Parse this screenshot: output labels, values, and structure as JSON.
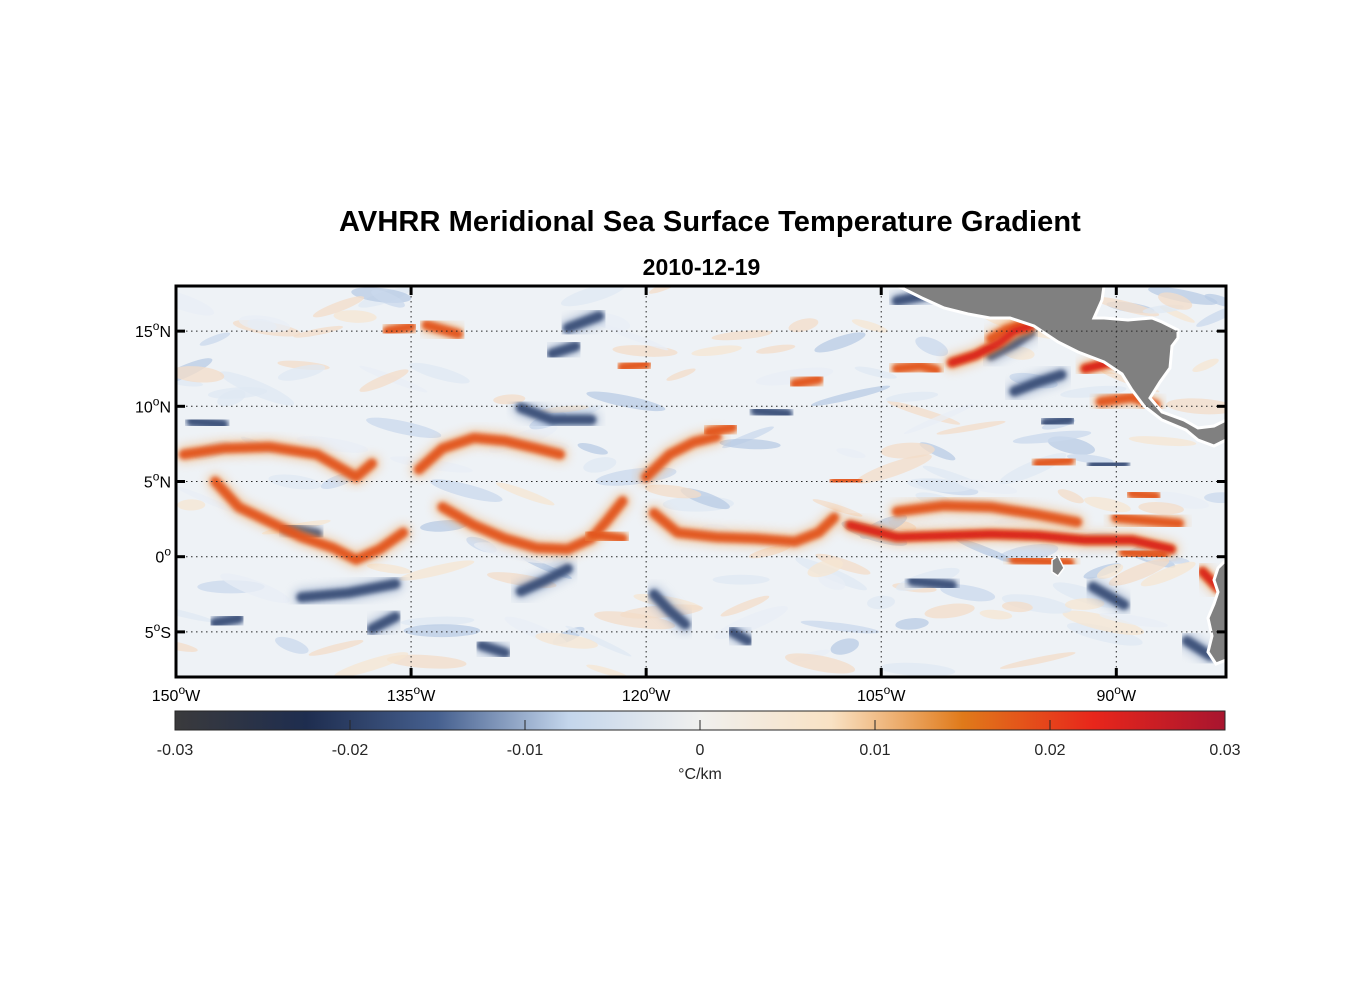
{
  "title": "AVHRR Meridional Sea Surface Temperature Gradient",
  "subtitle": "2010-12-19",
  "map": {
    "lon_range": [
      -150,
      -83
    ],
    "lat_range": [
      -8,
      18
    ],
    "lon_ticks": [
      {
        "value": -150,
        "num": "150",
        "hem": "W"
      },
      {
        "value": -135,
        "num": "135",
        "hem": "W"
      },
      {
        "value": -120,
        "num": "120",
        "hem": "W"
      },
      {
        "value": -105,
        "num": "105",
        "hem": "W"
      },
      {
        "value": -90,
        "num": "90",
        "hem": "W"
      }
    ],
    "lat_ticks": [
      {
        "value": 15,
        "num": "15",
        "hem": "N"
      },
      {
        "value": 10,
        "num": "10",
        "hem": "N"
      },
      {
        "value": 5,
        "num": "5",
        "hem": "N"
      },
      {
        "value": 0,
        "num": "0",
        "hem": ""
      },
      {
        "value": -5,
        "num": "5",
        "hem": "S"
      }
    ],
    "grid": "dotted",
    "land_color": "#808080"
  },
  "colorbar": {
    "min": -0.03,
    "max": 0.03,
    "ticks": [
      {
        "value": -0.03,
        "label": "-0.03"
      },
      {
        "value": -0.02,
        "label": "-0.02"
      },
      {
        "value": -0.01,
        "label": "-0.01"
      },
      {
        "value": 0,
        "label": "0"
      },
      {
        "value": 0.01,
        "label": "0.01"
      },
      {
        "value": 0.02,
        "label": "0.02"
      },
      {
        "value": 0.03,
        "label": "0.03"
      }
    ],
    "unit_label": "°C/km",
    "colors": [
      "#3a3a3c",
      "#1e2d4f",
      "#46608f",
      "#c4d6ec",
      "#f0f0ee",
      "#f9e2c4",
      "#e07a1a",
      "#e8261b",
      "#a8152f"
    ]
  },
  "features": {
    "positive_bands": [
      [
        [
          -149.5,
          6.8
        ],
        [
          -147,
          7.2
        ],
        [
          -144,
          7.3
        ],
        [
          -141,
          6.8
        ],
        [
          -138.5,
          5.3
        ],
        [
          -137.5,
          6.2
        ]
      ],
      [
        [
          -147.5,
          5
        ],
        [
          -146,
          3.3
        ],
        [
          -144,
          2.3
        ],
        [
          -142,
          1.3
        ],
        [
          -140,
          0.6
        ],
        [
          -138.5,
          -0.2
        ],
        [
          -137,
          0.5
        ],
        [
          -135.5,
          1.6
        ]
      ],
      [
        [
          -134.5,
          5.8
        ],
        [
          -133,
          7.2
        ],
        [
          -131,
          7.9
        ],
        [
          -129,
          7.7
        ],
        [
          -127,
          7.2
        ],
        [
          -125.5,
          6.8
        ]
      ],
      [
        [
          -133,
          3.3
        ],
        [
          -131,
          2.1
        ],
        [
          -129,
          1.2
        ],
        [
          -127,
          0.6
        ],
        [
          -125,
          0.5
        ],
        [
          -123.5,
          1.2
        ],
        [
          -122.5,
          2.4
        ],
        [
          -121.5,
          3.7
        ]
      ],
      [
        [
          -121.5,
          1.2
        ],
        [
          -123.5,
          1.5
        ]
      ],
      [
        [
          -120,
          5.3
        ],
        [
          -118.5,
          6.8
        ],
        [
          -117,
          7.6
        ],
        [
          -115.5,
          8.0
        ]
      ],
      [
        [
          -119.5,
          2.9
        ],
        [
          -118,
          1.6
        ],
        [
          -115.5,
          1.3
        ],
        [
          -113,
          1.2
        ],
        [
          -110.5,
          1.0
        ],
        [
          -109,
          1.6
        ],
        [
          -108,
          2.6
        ]
      ],
      [
        [
          -107,
          2.1
        ],
        [
          -104,
          1.3
        ],
        [
          -101,
          1.4
        ],
        [
          -98,
          1.5
        ],
        [
          -95,
          1.4
        ],
        [
          -92,
          1.1
        ],
        [
          -89,
          1.1
        ],
        [
          -86.5,
          0.5
        ]
      ],
      [
        [
          -104,
          3.0
        ],
        [
          -101,
          3.4
        ],
        [
          -98,
          3.3
        ],
        [
          -95,
          2.8
        ],
        [
          -92.5,
          2.3
        ]
      ],
      [
        [
          -90,
          2.6
        ],
        [
          -88,
          2.4
        ],
        [
          -86,
          2.2
        ]
      ],
      [
        [
          -84.5,
          -1.0
        ],
        [
          -83.5,
          -2.1
        ]
      ],
      [
        [
          -104,
          12.5
        ],
        [
          -102.5,
          12.7
        ],
        [
          -101.5,
          12.4
        ]
      ],
      [
        [
          -100.5,
          12.9
        ],
        [
          -99,
          13.4
        ],
        [
          -97.5,
          14.2
        ],
        [
          -96.5,
          15.0
        ],
        [
          -95.5,
          15.3
        ]
      ],
      [
        [
          -98,
          14.5
        ],
        [
          -97,
          15.1
        ],
        [
          -95.8,
          15.5
        ]
      ],
      [
        [
          -93,
          15.8
        ],
        [
          -92,
          16.0
        ]
      ],
      [
        [
          -92,
          12.5
        ],
        [
          -90,
          13.0
        ],
        [
          -89,
          13.2
        ]
      ],
      [
        [
          -91,
          10.3
        ],
        [
          -89,
          10.6
        ],
        [
          -87.5,
          10.1
        ]
      ],
      [
        [
          -136.5,
          15.0
        ],
        [
          -135,
          15.3
        ]
      ],
      [
        [
          -134,
          15.4
        ],
        [
          -132,
          14.8
        ]
      ],
      [
        [
          -121.5,
          12.6
        ],
        [
          -120,
          12.8
        ]
      ],
      [
        [
          -110.5,
          11.5
        ],
        [
          -109,
          11.8
        ]
      ],
      [
        [
          -116,
          8.3
        ],
        [
          -114.5,
          8.6
        ]
      ],
      [
        [
          -108,
          5.0
        ],
        [
          -106.5,
          5.1
        ]
      ],
      [
        [
          -95,
          6.2
        ],
        [
          -93,
          6.4
        ]
      ],
      [
        [
          -89,
          4.2
        ],
        [
          -87.5,
          4.0
        ]
      ],
      [
        [
          -96.5,
          -0.2
        ],
        [
          -93,
          -0.4
        ]
      ],
      [
        [
          -89.5,
          0.3
        ],
        [
          -87,
          0.1
        ]
      ]
    ],
    "negative_bands": [
      [
        [
          -136,
          -1.8
        ],
        [
          -139,
          -2.4
        ],
        [
          -142,
          -2.7
        ]
      ],
      [
        [
          -125,
          -0.8
        ],
        [
          -126.5,
          -1.6
        ],
        [
          -128,
          -2.3
        ]
      ],
      [
        [
          -143,
          1.9
        ],
        [
          -141,
          1.5
        ]
      ],
      [
        [
          -128,
          9.9
        ],
        [
          -126,
          9.1
        ],
        [
          -123.5,
          9.1
        ]
      ],
      [
        [
          -113,
          9.7
        ],
        [
          -111,
          9.5
        ]
      ],
      [
        [
          -119.5,
          -2.5
        ],
        [
          -118.5,
          -3.6
        ],
        [
          -117.5,
          -4.5
        ]
      ],
      [
        [
          -114.5,
          -5.0
        ],
        [
          -113.5,
          -5.6
        ]
      ],
      [
        [
          -136,
          -4.0
        ],
        [
          -137.5,
          -4.8
        ]
      ],
      [
        [
          -147.5,
          -4.4
        ],
        [
          -146,
          -4.1
        ]
      ],
      [
        [
          -98,
          13.4
        ],
        [
          -96.5,
          14.2
        ],
        [
          -95.5,
          14.9
        ]
      ],
      [
        [
          -96.5,
          11.0
        ],
        [
          -95,
          11.6
        ],
        [
          -93.5,
          12.1
        ]
      ],
      [
        [
          -104,
          17.0
        ],
        [
          -101.5,
          17.5
        ]
      ],
      [
        [
          -91.5,
          6.1
        ],
        [
          -89.5,
          6.2
        ]
      ],
      [
        [
          -91.5,
          -2.0
        ],
        [
          -89.5,
          -3.2
        ]
      ],
      [
        [
          -85.5,
          -5.6
        ],
        [
          -84,
          -6.6
        ]
      ],
      [
        [
          -103,
          -1.6
        ],
        [
          -100.5,
          -1.9
        ]
      ],
      [
        [
          -125,
          15.2
        ],
        [
          -123,
          16.0
        ]
      ],
      [
        [
          -126,
          13.5
        ],
        [
          -124.5,
          14.0
        ]
      ],
      [
        [
          -130.5,
          -5.9
        ],
        [
          -129,
          -6.4
        ]
      ],
      [
        [
          -94.5,
          8.9
        ],
        [
          -93,
          9.1
        ]
      ],
      [
        [
          -149,
          9.0
        ],
        [
          -147,
          8.8
        ]
      ]
    ]
  }
}
